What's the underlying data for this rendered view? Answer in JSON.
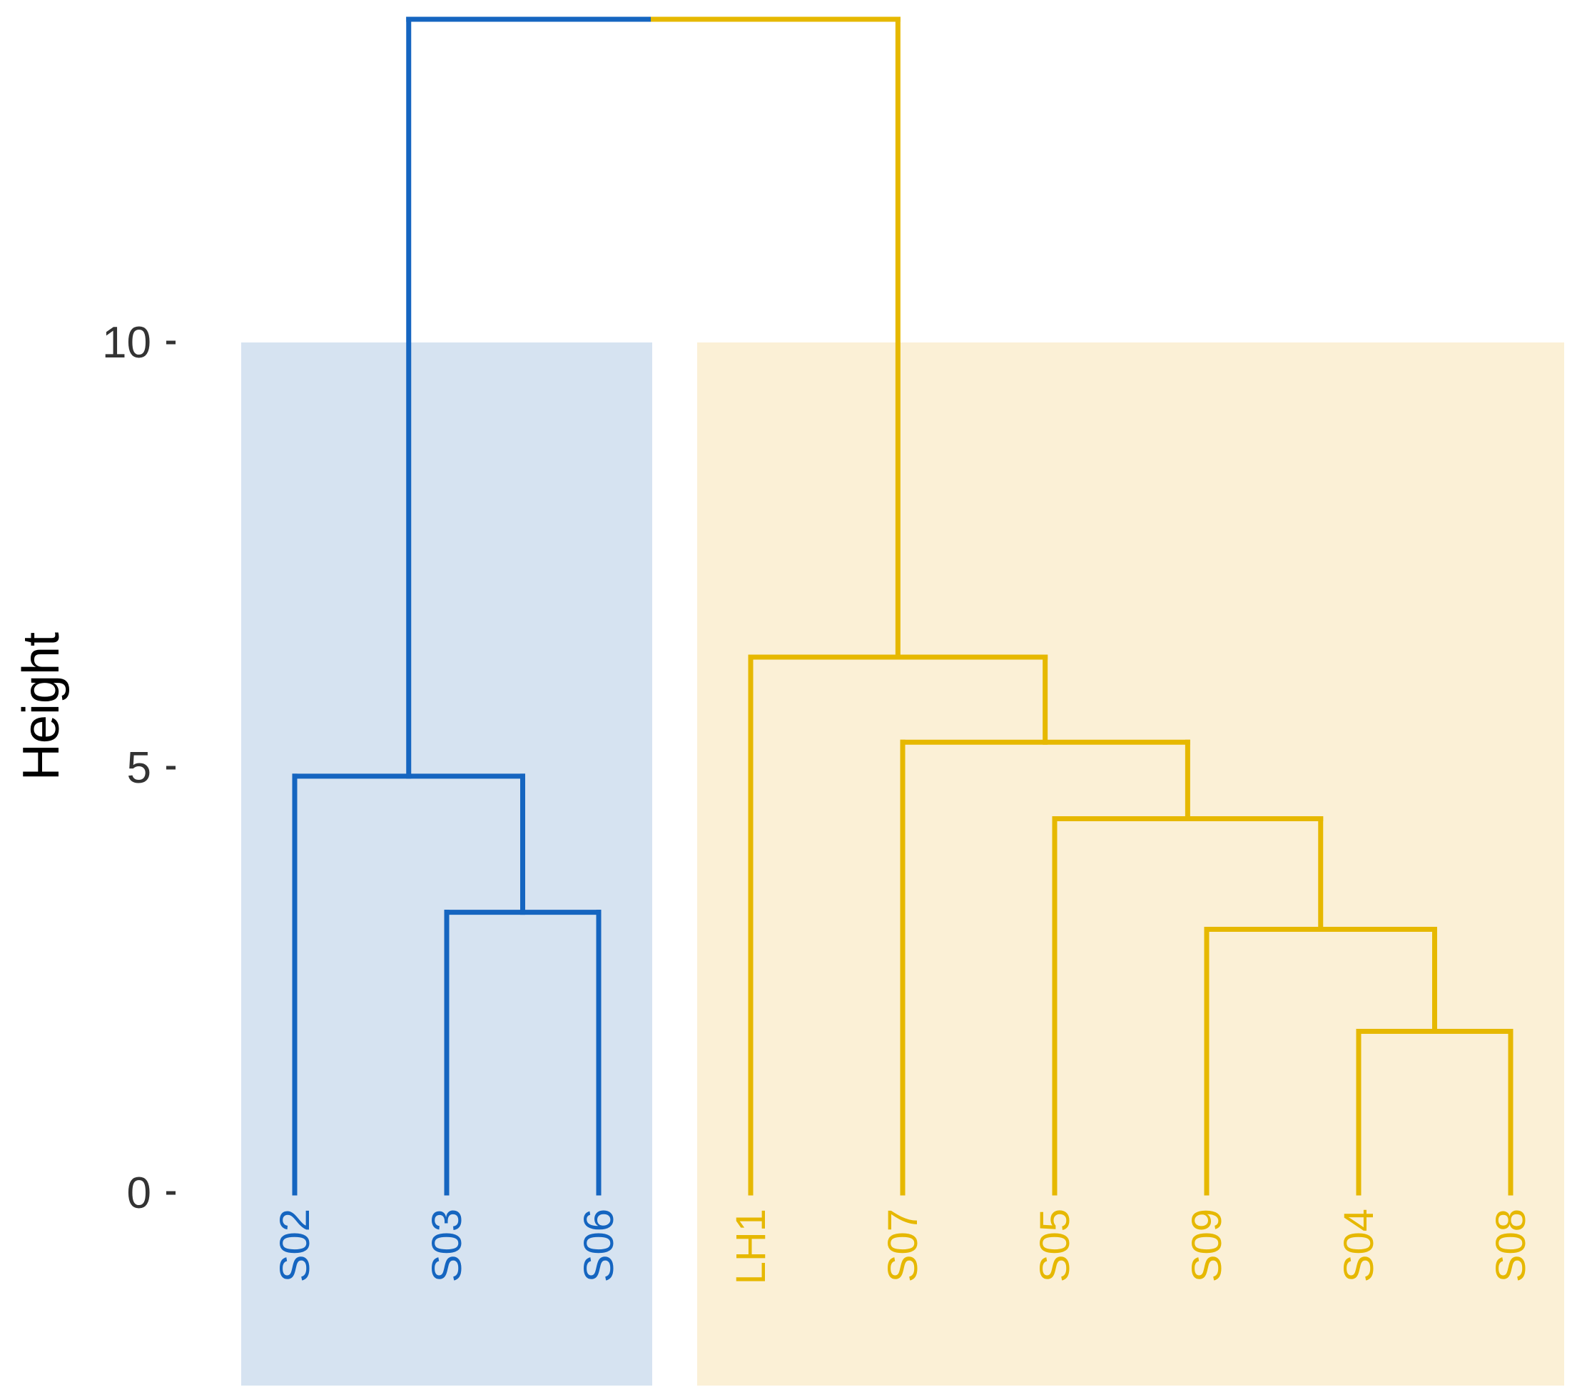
{
  "chart_data": {
    "type": "dendrogram",
    "ylabel": "Height",
    "ylim": [
      0,
      13.8
    ],
    "yticks": [
      0,
      5,
      10
    ],
    "grid": false,
    "leaves": [
      "S02",
      "S03",
      "S06",
      "LH1",
      "S07",
      "S05",
      "S09",
      "S04",
      "S08"
    ],
    "merges": [
      {
        "id": "m1",
        "height": 3.3,
        "left": "S03",
        "right": "S06"
      },
      {
        "id": "m2",
        "height": 4.9,
        "left": "S02",
        "right": "m1"
      },
      {
        "id": "m3",
        "height": 1.9,
        "left": "S04",
        "right": "S08"
      },
      {
        "id": "m4",
        "height": 3.1,
        "left": "S09",
        "right": "m3"
      },
      {
        "id": "m5",
        "height": 4.4,
        "left": "S05",
        "right": "m4"
      },
      {
        "id": "m6",
        "height": 5.3,
        "left": "S07",
        "right": "m5"
      },
      {
        "id": "m7",
        "height": 6.3,
        "left": "LH1",
        "right": "m6"
      },
      {
        "id": "root",
        "height": 13.8,
        "left": "m2",
        "right": "m7"
      }
    ],
    "clusters": [
      {
        "leaves": [
          "S02",
          "S03",
          "S06"
        ],
        "color": "#1565C0",
        "fill": "#D6E3F1",
        "rect_top": 10.0
      },
      {
        "leaves": [
          "LH1",
          "S07",
          "S05",
          "S09",
          "S04",
          "S08"
        ],
        "color": "#E6B800",
        "fill": "#FBF0D6",
        "rect_top": 10.0
      }
    ]
  }
}
